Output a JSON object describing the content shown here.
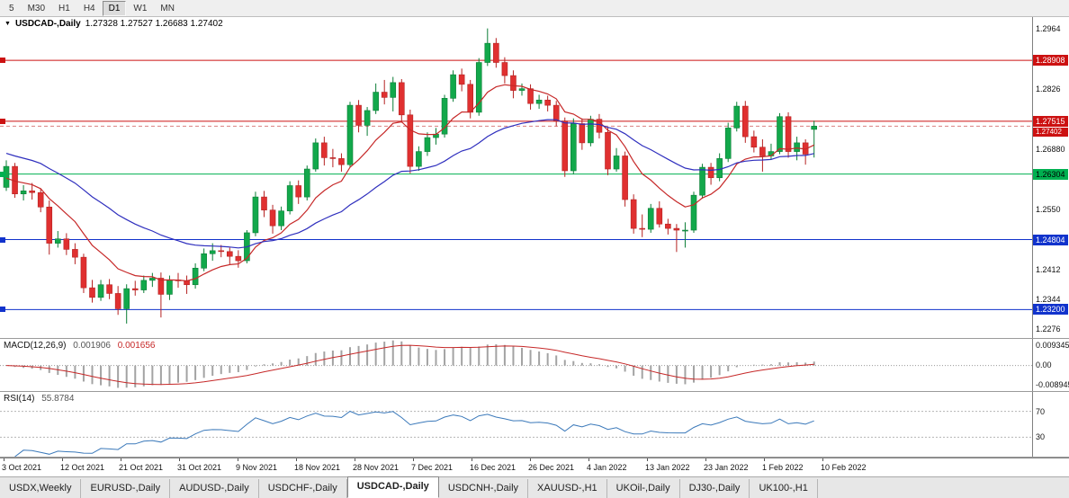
{
  "toolbar": {
    "periods": [
      {
        "label": "5",
        "active": false
      },
      {
        "label": "M30",
        "active": false
      },
      {
        "label": "H1",
        "active": false
      },
      {
        "label": "H4",
        "active": false
      },
      {
        "label": "D1",
        "active": true
      },
      {
        "label": "W1",
        "active": false
      },
      {
        "label": "MN",
        "active": false
      }
    ]
  },
  "chart": {
    "title": "USDCAD-,Daily",
    "ohlc": "1.27328 1.27527 1.26683 1.27402",
    "dropdown_icon": "▼"
  },
  "chart_data": {
    "type": "candlestick",
    "symbol": "USDCAD",
    "timeframe": "Daily",
    "price_axis": {
      "max": 1.299,
      "min": 1.2255,
      "ticks": [
        {
          "value": 1.2964,
          "label": "1.2964"
        },
        {
          "value": 1.2826,
          "label": "1.2826"
        },
        {
          "value": 1.2688,
          "label": "1.26880"
        },
        {
          "value": 1.255,
          "label": "1.2550"
        },
        {
          "value": 1.2412,
          "label": "1.2412"
        },
        {
          "value": 1.2344,
          "label": "1.2344"
        },
        {
          "value": 1.2276,
          "label": "1.2276"
        }
      ]
    },
    "hlines": [
      {
        "price": 1.28908,
        "label": "1.28908",
        "color": "#cc1111",
        "text_color": "#ffffff"
      },
      {
        "price": 1.27515,
        "label": "1.27515",
        "color": "#cc1111",
        "text_color": "#ffffff"
      },
      {
        "price": 1.26304,
        "label": "1.26304",
        "color": "#00b050",
        "text_color": "#000000"
      },
      {
        "price": 1.24804,
        "label": "1.24804",
        "color": "#1133cc",
        "text_color": "#ffffff"
      },
      {
        "price": 1.232,
        "label": "1.23200",
        "color": "#1133cc",
        "text_color": "#ffffff"
      }
    ],
    "current": {
      "price": 1.27402,
      "label": "1.27402",
      "color": "#cc1111"
    },
    "colors": {
      "up": "#12a84b",
      "down": "#e03030",
      "up_stroke": "#0b7d36",
      "down_stroke": "#b52222"
    },
    "moving_averages": [
      {
        "period": 10,
        "color": "#c62828",
        "seed": 1.2615
      },
      {
        "period": 30,
        "color": "#2f2fbe",
        "seed": 1.268
      }
    ],
    "dates": [
      "3 Oct 2021",
      "12 Oct 2021",
      "21 Oct 2021",
      "31 Oct 2021",
      "9 Nov 2021",
      "18 Nov 2021",
      "28 Nov 2021",
      "7 Dec 2021",
      "16 Dec 2021",
      "26 Dec 2021",
      "4 Jan 2022",
      "13 Jan 2022",
      "23 Jan 2022",
      "1 Feb 2022",
      "10 Feb 2022"
    ],
    "candles": [
      [
        1.26,
        1.2662,
        1.2592,
        1.2648
      ],
      [
        1.2648,
        1.2656,
        1.2576,
        1.2585
      ],
      [
        1.2585,
        1.2605,
        1.257,
        1.2592
      ],
      [
        1.2592,
        1.261,
        1.2572,
        1.2588
      ],
      [
        1.2588,
        1.2598,
        1.2543,
        1.2555
      ],
      [
        1.2555,
        1.257,
        1.2446,
        1.2472
      ],
      [
        1.2472,
        1.25,
        1.2462,
        1.2482
      ],
      [
        1.2482,
        1.2495,
        1.2445,
        1.2458
      ],
      [
        1.2458,
        1.2472,
        1.2424,
        1.244
      ],
      [
        1.244,
        1.2448,
        1.2358,
        1.237
      ],
      [
        1.237,
        1.2388,
        1.2336,
        1.2348
      ],
      [
        1.2348,
        1.2388,
        1.234,
        1.2377
      ],
      [
        1.2377,
        1.239,
        1.2344,
        1.2357
      ],
      [
        1.2357,
        1.2374,
        1.2308,
        1.2322
      ],
      [
        1.2322,
        1.2378,
        1.2288,
        1.2368
      ],
      [
        1.2368,
        1.2386,
        1.2352,
        1.2365
      ],
      [
        1.2365,
        1.2398,
        1.2358,
        1.2387
      ],
      [
        1.2387,
        1.2404,
        1.2372,
        1.2392
      ],
      [
        1.2392,
        1.2405,
        1.2302,
        1.2355
      ],
      [
        1.2355,
        1.2398,
        1.2342,
        1.2388
      ],
      [
        1.2388,
        1.2404,
        1.237,
        1.2386
      ],
      [
        1.2386,
        1.2398,
        1.2356,
        1.2377
      ],
      [
        1.2377,
        1.2426,
        1.2368,
        1.2415
      ],
      [
        1.2415,
        1.246,
        1.2408,
        1.2448
      ],
      [
        1.2448,
        1.2472,
        1.2432,
        1.2455
      ],
      [
        1.2455,
        1.2468,
        1.244,
        1.2453
      ],
      [
        1.2453,
        1.2462,
        1.2424,
        1.2442
      ],
      [
        1.2442,
        1.2456,
        1.2416,
        1.2432
      ],
      [
        1.2432,
        1.2502,
        1.2426,
        1.2496
      ],
      [
        1.2496,
        1.259,
        1.2488,
        1.2578
      ],
      [
        1.2578,
        1.2592,
        1.2532,
        1.2548
      ],
      [
        1.2548,
        1.256,
        1.2494,
        1.2512
      ],
      [
        1.2512,
        1.2556,
        1.2502,
        1.2546
      ],
      [
        1.2546,
        1.2614,
        1.2538,
        1.2604
      ],
      [
        1.2604,
        1.2616,
        1.2562,
        1.2578
      ],
      [
        1.2578,
        1.265,
        1.257,
        1.2642
      ],
      [
        1.2642,
        1.2712,
        1.2636,
        1.2702
      ],
      [
        1.2702,
        1.2716,
        1.265,
        1.2668
      ],
      [
        1.2668,
        1.2688,
        1.2646,
        1.2666
      ],
      [
        1.2666,
        1.2678,
        1.2636,
        1.2652
      ],
      [
        1.2652,
        1.2796,
        1.2646,
        1.2788
      ],
      [
        1.2788,
        1.28,
        1.2726,
        1.2742
      ],
      [
        1.2742,
        1.2784,
        1.2718,
        1.2776
      ],
      [
        1.2776,
        1.2838,
        1.2768,
        1.2818
      ],
      [
        1.2818,
        1.2846,
        1.279,
        1.2806
      ],
      [
        1.2806,
        1.2853,
        1.2774,
        1.284
      ],
      [
        1.284,
        1.2848,
        1.2748,
        1.2766
      ],
      [
        1.2766,
        1.2778,
        1.2632,
        1.2648
      ],
      [
        1.2648,
        1.2694,
        1.2638,
        1.2682
      ],
      [
        1.2682,
        1.2726,
        1.2672,
        1.2714
      ],
      [
        1.2714,
        1.2736,
        1.2698,
        1.2722
      ],
      [
        1.2722,
        1.2812,
        1.2714,
        1.2804
      ],
      [
        1.2804,
        1.2868,
        1.2796,
        1.2858
      ],
      [
        1.2858,
        1.2872,
        1.282,
        1.2836
      ],
      [
        1.2836,
        1.2846,
        1.2758,
        1.2772
      ],
      [
        1.2772,
        1.2896,
        1.2764,
        1.2886
      ],
      [
        1.2886,
        1.2964,
        1.2878,
        1.293
      ],
      [
        1.293,
        1.2942,
        1.2874,
        1.2886
      ],
      [
        1.2886,
        1.2898,
        1.2838,
        1.2856
      ],
      [
        1.2856,
        1.2868,
        1.2804,
        1.2822
      ],
      [
        1.2822,
        1.2838,
        1.281,
        1.2826
      ],
      [
        1.2826,
        1.2836,
        1.2778,
        1.2792
      ],
      [
        1.2792,
        1.2812,
        1.278,
        1.28
      ],
      [
        1.28,
        1.281,
        1.2774,
        1.2788
      ],
      [
        1.2788,
        1.2798,
        1.274,
        1.2752
      ],
      [
        1.2752,
        1.276,
        1.2624,
        1.2638
      ],
      [
        1.2638,
        1.2758,
        1.263,
        1.2746
      ],
      [
        1.2746,
        1.2758,
        1.2686,
        1.2702
      ],
      [
        1.2702,
        1.2764,
        1.2694,
        1.2756
      ],
      [
        1.2756,
        1.2768,
        1.2712,
        1.2726
      ],
      [
        1.2726,
        1.2738,
        1.2628,
        1.2642
      ],
      [
        1.2642,
        1.269,
        1.2636,
        1.2672
      ],
      [
        1.2672,
        1.2682,
        1.2556,
        1.2572
      ],
      [
        1.2572,
        1.2584,
        1.2494,
        1.2506
      ],
      [
        1.2506,
        1.2538,
        1.2486,
        1.2504
      ],
      [
        1.2504,
        1.2562,
        1.2496,
        1.2552
      ],
      [
        1.2552,
        1.2568,
        1.2508,
        1.2516
      ],
      [
        1.2516,
        1.2528,
        1.2492,
        1.2506
      ],
      [
        1.2506,
        1.2516,
        1.2452,
        1.2502
      ],
      [
        1.2502,
        1.252,
        1.2462,
        1.2502
      ],
      [
        1.2502,
        1.259,
        1.2496,
        1.2582
      ],
      [
        1.2582,
        1.2654,
        1.2574,
        1.2646
      ],
      [
        1.2646,
        1.2656,
        1.2606,
        1.2622
      ],
      [
        1.2622,
        1.2678,
        1.2614,
        1.2666
      ],
      [
        1.2666,
        1.2748,
        1.2658,
        1.2736
      ],
      [
        1.2736,
        1.2796,
        1.2728,
        1.2786
      ],
      [
        1.2786,
        1.2798,
        1.2702,
        1.2716
      ],
      [
        1.2716,
        1.273,
        1.268,
        1.2692
      ],
      [
        1.2692,
        1.271,
        1.2636,
        1.2672
      ],
      [
        1.2672,
        1.27,
        1.2664,
        1.2682
      ],
      [
        1.2682,
        1.277,
        1.2676,
        1.2762
      ],
      [
        1.2762,
        1.2772,
        1.2668,
        1.2682
      ],
      [
        1.2682,
        1.2716,
        1.2662,
        1.2702
      ],
      [
        1.2702,
        1.271,
        1.2652,
        1.2676
      ],
      [
        1.27328,
        1.27527,
        1.26683,
        1.27402
      ]
    ]
  },
  "macd": {
    "label": "MACD(12,26,9)",
    "value_main": "0.001906",
    "value_signal": "0.001656",
    "fast": 12,
    "slow": 26,
    "signal_period": 9,
    "vmax": 0.009345,
    "vmin": -0.008945,
    "axis_labels": [
      "0.009345",
      "0.00",
      "-0.008945"
    ],
    "histogram_color": "#a3a3a3",
    "signal_color": "#c62828"
  },
  "rsi": {
    "label": "RSI(14)",
    "value": "55.8784",
    "period": 14,
    "levels": [
      {
        "value": 70,
        "label": "70"
      },
      {
        "value": 30,
        "label": "30"
      }
    ],
    "color": "#3b79ba"
  },
  "tabs": {
    "active_index": 4,
    "items": [
      {
        "label": "USDX,Weekly"
      },
      {
        "label": "EURUSD-,Daily"
      },
      {
        "label": "AUDUSD-,Daily"
      },
      {
        "label": "USDCHF-,Daily"
      },
      {
        "label": "USDCAD-,Daily"
      },
      {
        "label": "USDCNH-,Daily"
      },
      {
        "label": "XAUUSD-,H1"
      },
      {
        "label": "UKOil-,Daily"
      },
      {
        "label": "DJ30-,Daily"
      },
      {
        "label": "UK100-,H1"
      }
    ]
  }
}
